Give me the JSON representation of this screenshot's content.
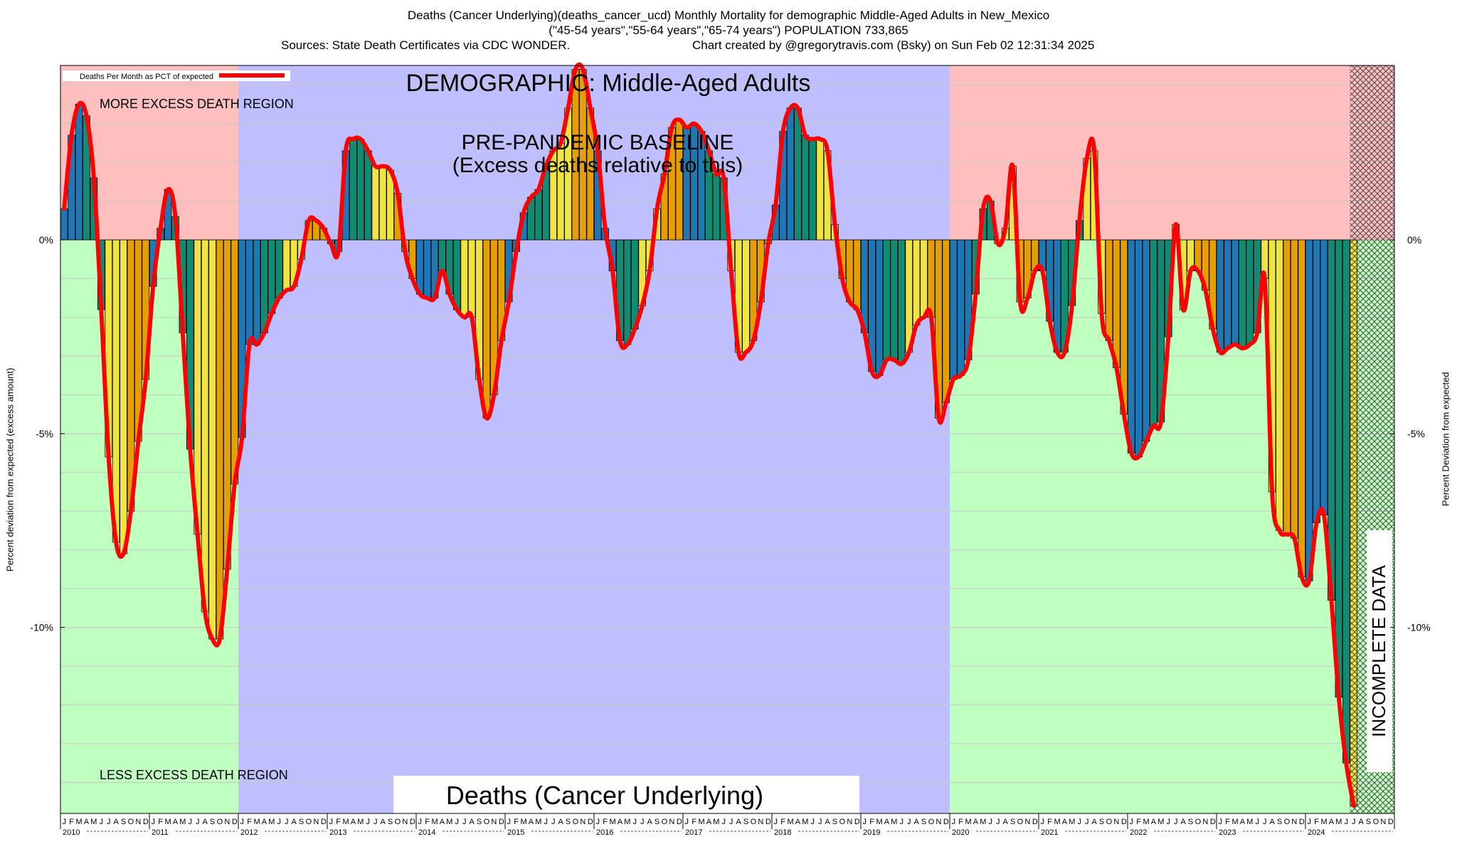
{
  "header": {
    "title": "Deaths (Cancer Underlying)(deaths_cancer_ucd) Monthly Mortality for demographic Middle-Aged Adults in New_Mexico",
    "subtitle": "(\"45-54 years\",\"55-64 years\",\"65-74 years\") POPULATION 733,865",
    "sources": "Sources: State Death Certificates via CDC WONDER.",
    "credit": "Chart created by @gregorytravis.com (Bsky) on Sun Feb 02 12:31:34 2025"
  },
  "chart_data": {
    "type": "bar",
    "title": "Deaths (Cancer Underlying)",
    "ylabel_left": "Percent deviation from expected (excess amount)",
    "ylabel_right": "Percent Deviation from expected",
    "legend": {
      "label": "Deaths Per Month as PCT of expected",
      "position": "top-left",
      "line_color": "#ff0000"
    },
    "ylim": [
      -14.8,
      4.5
    ],
    "y_ticks": [
      {
        "value": 0,
        "label": "0%"
      },
      {
        "value": -5,
        "label": "-5%"
      },
      {
        "value": -10,
        "label": "-10%"
      }
    ],
    "annotations": {
      "demographic": "DEMOGRAPHIC: Middle-Aged Adults",
      "baseline_1": "PRE-PANDEMIC BASELINE",
      "baseline_2": "(Excess deaths relative to this)",
      "more_excess": "MORE EXCESS DEATH REGION",
      "less_excess": "LESS EXCESS DEATH REGION",
      "incomplete": "INCOMPLETE DATA"
    },
    "regions": [
      {
        "name": "pre-baseline",
        "from": "2010-01",
        "to": "2012-01",
        "upper": "#ffbfbf",
        "lower": "#bfffbf"
      },
      {
        "name": "baseline",
        "from": "2012-01",
        "to": "2020-01",
        "color": "#bfbfff"
      },
      {
        "name": "post-baseline",
        "from": "2020-01",
        "to": "2025-01",
        "upper": "#ffbfbf",
        "lower": "#bfffbf"
      },
      {
        "name": "incomplete",
        "from": "2024-07",
        "to": "2025-01"
      }
    ],
    "month_letters": [
      "J",
      "F",
      "M",
      "A",
      "M",
      "J",
      "J",
      "A",
      "S",
      "O",
      "N",
      "D"
    ],
    "years": [
      "2010",
      "2011",
      "2012",
      "2013",
      "2014",
      "2015",
      "2016",
      "2017",
      "2018",
      "2019",
      "2020",
      "2021",
      "2022",
      "2023",
      "2024"
    ],
    "bar_colors": [
      "#1f77b4",
      "#138a72",
      "#f0e442",
      "#e69f00"
    ],
    "values": [
      0.8,
      2.7,
      3.5,
      3.2,
      1.6,
      -1.8,
      -5.6,
      -7.8,
      -8.1,
      -7.0,
      -5.2,
      -3.6,
      -1.2,
      0.3,
      1.3,
      0.6,
      -2.4,
      -5.4,
      -7.6,
      -9.6,
      -10.3,
      -10.3,
      -8.5,
      -6.3,
      -5.1,
      -2.7,
      -2.7,
      -2.4,
      -1.9,
      -1.5,
      -1.3,
      -1.2,
      -0.5,
      0.5,
      0.5,
      0.3,
      -0.1,
      -0.3,
      2.3,
      2.6,
      2.6,
      2.3,
      1.9,
      1.9,
      1.8,
      1.2,
      -0.3,
      -1.0,
      -1.4,
      -1.5,
      -1.5,
      -0.8,
      -1.4,
      -1.8,
      -2.0,
      -2.0,
      -3.6,
      -4.6,
      -4.0,
      -2.6,
      -1.6,
      -0.3,
      0.7,
      1.1,
      1.3,
      1.9,
      2.3,
      2.5,
      3.4,
      4.4,
      4.4,
      3.4,
      2.3,
      0.3,
      -0.8,
      -2.6,
      -2.7,
      -2.3,
      -1.7,
      -0.8,
      0.8,
      1.7,
      2.9,
      3.1,
      2.9,
      3.0,
      2.8,
      2.3,
      1.7,
      1.6,
      -0.8,
      -2.9,
      -2.9,
      -2.6,
      -1.6,
      -0.1,
      0.9,
      2.8,
      3.4,
      3.4,
      2.7,
      2.6,
      2.6,
      2.3,
      0.4,
      -1.0,
      -1.6,
      -1.8,
      -2.4,
      -3.4,
      -3.5,
      -3.1,
      -3.1,
      -3.2,
      -2.9,
      -2.2,
      -2.0,
      -2.0,
      -4.6,
      -4.2,
      -3.6,
      -3.5,
      -3.1,
      -1.4,
      0.8,
      1.0,
      -0.1,
      0.3,
      1.9,
      -1.6,
      -1.5,
      -0.8,
      -0.8,
      -2.1,
      -2.9,
      -2.9,
      -1.7,
      0.5,
      2.1,
      2.3,
      -1.9,
      -2.6,
      -3.3,
      -4.5,
      -5.5,
      -5.6,
      -5.2,
      -4.8,
      -4.7,
      -2.5,
      0.4,
      -1.8,
      -0.8,
      -0.8,
      -1.3,
      -2.3,
      -2.9,
      -2.8,
      -2.7,
      -2.8,
      -2.7,
      -2.4,
      -1.0,
      -6.5,
      -7.5,
      -7.6,
      -7.7,
      -8.7,
      -8.8,
      -7.3,
      -7.1,
      -9.3,
      -11.8,
      -13.5,
      -14.6
    ]
  }
}
